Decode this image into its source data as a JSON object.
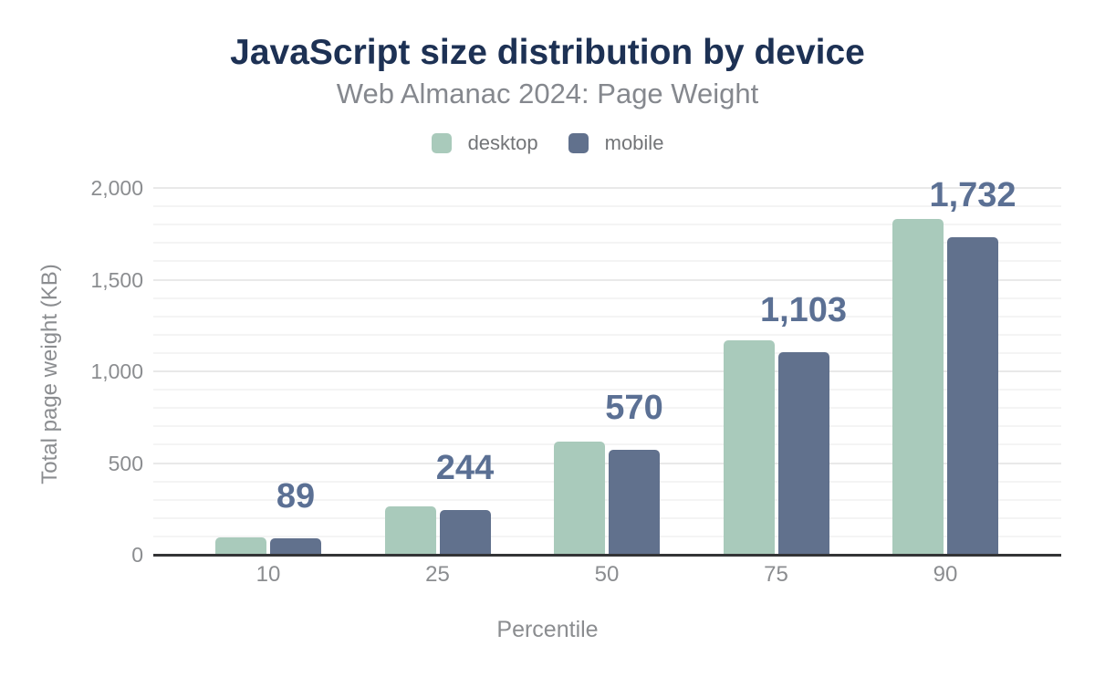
{
  "title": "JavaScript size distribution by device",
  "subtitle": "Web Almanac 2024: Page Weight",
  "legend": {
    "items": [
      {
        "label": "desktop",
        "color": "#a9cabb"
      },
      {
        "label": "mobile",
        "color": "#61718d"
      }
    ]
  },
  "chart_data": {
    "type": "bar",
    "categories": [
      "10",
      "25",
      "50",
      "75",
      "90"
    ],
    "series": [
      {
        "name": "desktop",
        "color": "#a9cabb",
        "values": [
          97,
          266,
          616,
          1168,
          1830
        ]
      },
      {
        "name": "mobile",
        "color": "#61718d",
        "values": [
          89,
          244,
          570,
          1103,
          1732
        ]
      }
    ],
    "bar_labels": {
      "series": "mobile",
      "values": [
        "89",
        "244",
        "570",
        "1,103",
        "1,732"
      ],
      "color": "#5b7094"
    },
    "title": "JavaScript size distribution by device",
    "subtitle": "Web Almanac 2024: Page Weight",
    "xlabel": "Percentile",
    "ylabel": "Total page weight (KB)",
    "ylim": [
      0,
      2000
    ],
    "y_ticks": [
      0,
      500,
      1000,
      1500,
      2000
    ],
    "y_tick_labels": [
      "0",
      "500",
      "1,000",
      "1,500",
      "2,000"
    ],
    "grid": {
      "horizontal": true,
      "vertical": false,
      "minor_step": 100,
      "major_step": 500
    },
    "legend_position": "top"
  },
  "colors": {
    "title": "#1d3154",
    "subtitle": "#85888e",
    "axis_text": "#8b8d90",
    "axis_line": "#333436",
    "gridline_minor": "#f4f4f4",
    "gridline_major": "#e9e9e9",
    "background": "#ffffff"
  }
}
